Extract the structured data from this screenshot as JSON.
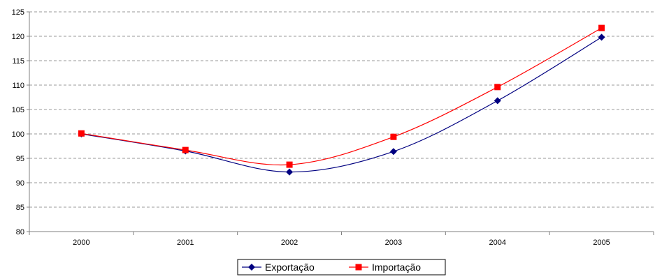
{
  "chart_data": {
    "type": "line",
    "categories": [
      "2000",
      "2001",
      "2002",
      "2003",
      "2004",
      "2005"
    ],
    "series": [
      {
        "name": "Exportação",
        "values": [
          100,
          96.5,
          92.2,
          96.4,
          106.8,
          119.8
        ],
        "color": "#000080",
        "marker": "diamond"
      },
      {
        "name": "Importação",
        "values": [
          100.1,
          96.7,
          93.7,
          99.4,
          109.6,
          121.7
        ],
        "color": "#ff0000",
        "marker": "square"
      }
    ],
    "title": "",
    "xlabel": "",
    "ylabel": "",
    "ylim": [
      80,
      125
    ],
    "yticks": [
      "80",
      "85",
      "90",
      "95",
      "100",
      "105",
      "110",
      "115",
      "120",
      "125"
    ],
    "grid": "horizontal dashed",
    "smoothed": true,
    "legend_position": "bottom-center"
  }
}
